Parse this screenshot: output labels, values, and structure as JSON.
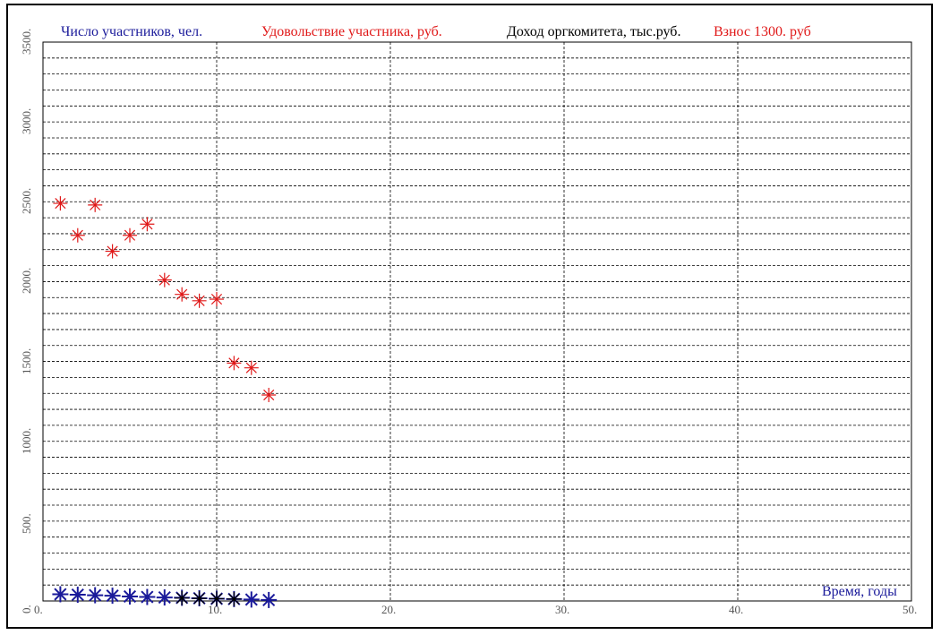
{
  "header": {
    "participants": "Число участников, чел.",
    "satisfaction": "Удовольствие участника, руб.",
    "income": "Доход оргкомитета, тыс.руб.",
    "fee": "Взнос  1300. руб"
  },
  "colors": {
    "participants": "#1a1a9a",
    "satisfaction": "#e01818",
    "income": "#000000",
    "fee": "#e01818",
    "grid": "#000000"
  },
  "chart_data": {
    "type": "scatter",
    "xlabel": "Время, годы",
    "ylabel": "",
    "xlim": [
      0,
      50
    ],
    "ylim": [
      0,
      3500
    ],
    "x_ticks": [
      "0.",
      "10.",
      "20.",
      "30.",
      "40.",
      "50."
    ],
    "y_ticks": [
      "0.",
      "500.",
      "1000.",
      "1500.",
      "2000.",
      "2500.",
      "3000.",
      "3500."
    ],
    "grid": true,
    "series": [
      {
        "name": "Удовольствие участника, руб.",
        "marker": "asterisk",
        "points": [
          [
            1,
            2490
          ],
          [
            2,
            2290
          ],
          [
            3,
            2480
          ],
          [
            4,
            2190
          ],
          [
            5,
            2290
          ],
          [
            6,
            2360
          ],
          [
            7,
            2010
          ],
          [
            8,
            1920
          ],
          [
            9,
            1880
          ],
          [
            10,
            1890
          ],
          [
            11,
            1490
          ],
          [
            12,
            1460
          ],
          [
            13,
            1290
          ]
        ]
      },
      {
        "name": "Число участников, чел.",
        "marker": "asterisk",
        "points": [
          [
            1,
            42
          ],
          [
            2,
            39
          ],
          [
            3,
            36
          ],
          [
            4,
            33
          ],
          [
            5,
            28
          ],
          [
            6,
            25
          ],
          [
            7,
            22
          ],
          [
            8,
            20
          ],
          [
            9,
            17
          ],
          [
            10,
            14
          ],
          [
            11,
            12
          ],
          [
            12,
            9
          ],
          [
            13,
            6
          ]
        ]
      },
      {
        "name": "Доход оргкомитета, тыс.руб.",
        "marker": "asterisk",
        "points": [
          [
            8,
            18
          ],
          [
            9,
            16
          ],
          [
            10,
            14
          ],
          [
            11,
            12
          ]
        ]
      }
    ]
  }
}
